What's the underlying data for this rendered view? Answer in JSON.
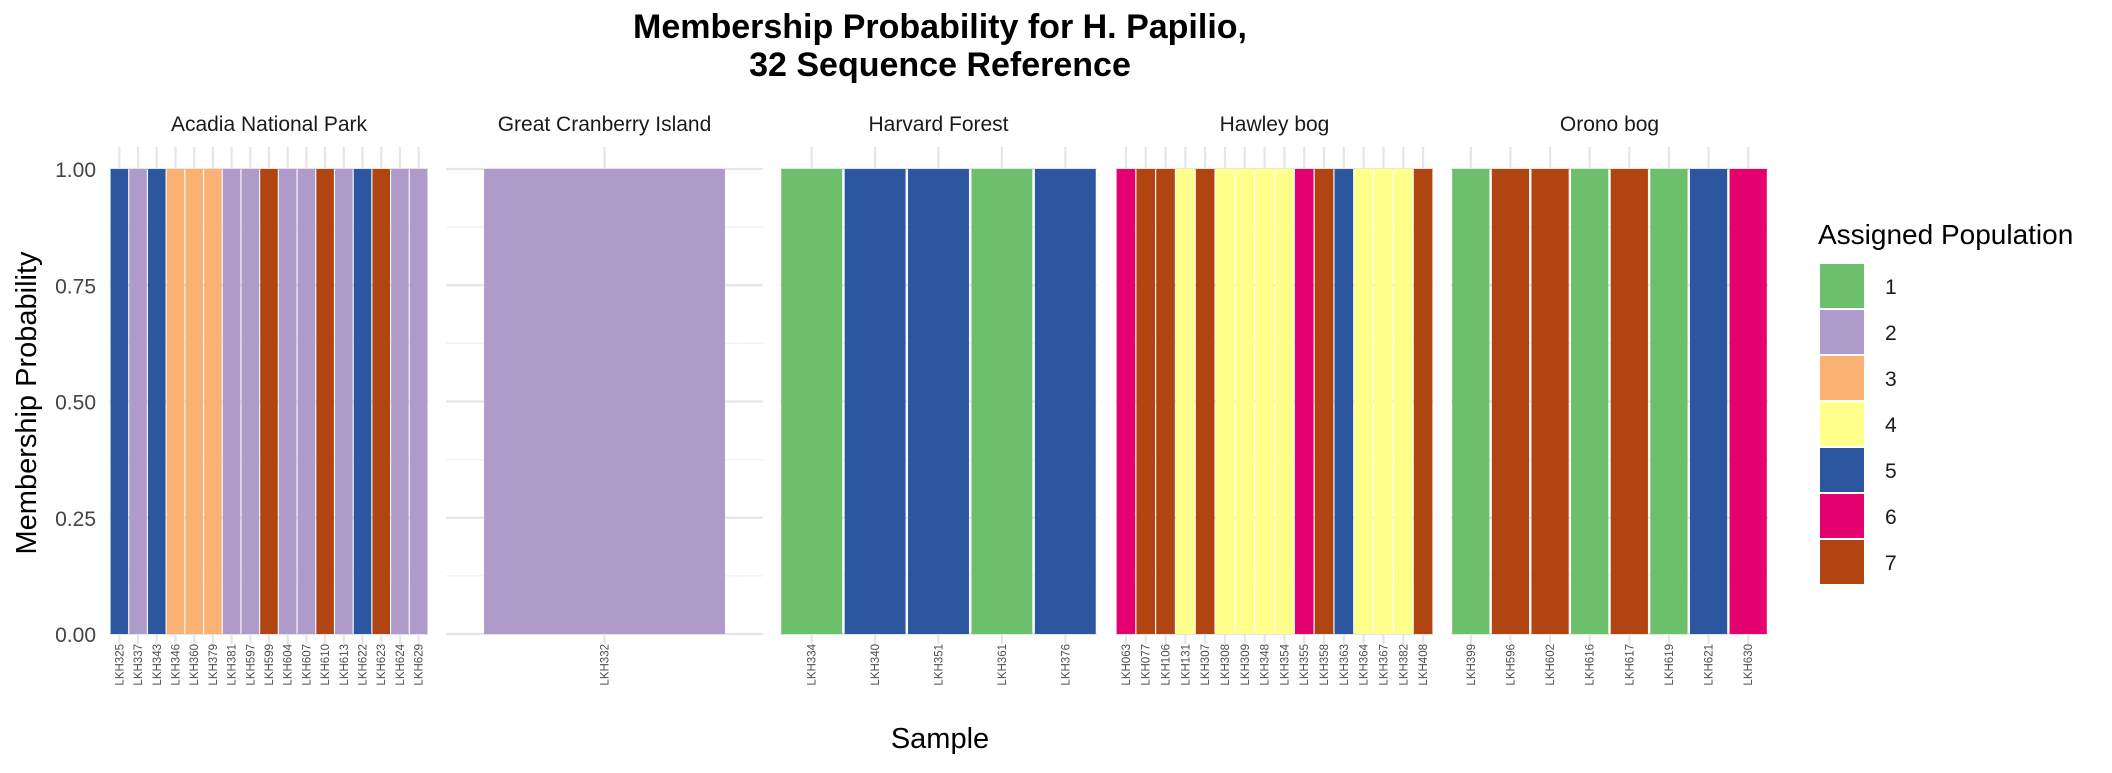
{
  "chart_data": {
    "type": "bar",
    "title_lines": [
      "Membership Probability for H. Papilio,",
      "32 Sequence Reference"
    ],
    "xlabel": "Sample",
    "ylabel": "Membership Probability",
    "ylim": [
      0,
      1
    ],
    "y_ticks": [
      "0.00",
      "0.25",
      "0.50",
      "0.75",
      "1.00"
    ],
    "y_tick_values": [
      0,
      0.25,
      0.5,
      0.75,
      1.0
    ],
    "grid": true,
    "stacked": true,
    "legend": {
      "title": "Assigned Population",
      "position": "right",
      "entries": [
        {
          "label": "1",
          "color": "#6DC06B"
        },
        {
          "label": "2",
          "color": "#AE9BCA"
        },
        {
          "label": "3",
          "color": "#FBB173"
        },
        {
          "label": "4",
          "color": "#FFFF8C"
        },
        {
          "label": "5",
          "color": "#2C56A0"
        },
        {
          "label": "6",
          "color": "#E5006F"
        },
        {
          "label": "7",
          "color": "#B14511"
        }
      ]
    },
    "facets": [
      {
        "name": "Acadia National Park",
        "samples": [
          {
            "id": "LKH325",
            "population": "5",
            "probability": 1.0
          },
          {
            "id": "LKH337",
            "population": "2",
            "probability": 1.0
          },
          {
            "id": "LKH343",
            "population": "5",
            "probability": 1.0
          },
          {
            "id": "LKH346",
            "population": "3",
            "probability": 1.0
          },
          {
            "id": "LKH360",
            "population": "3",
            "probability": 1.0
          },
          {
            "id": "LKH379",
            "population": "3",
            "probability": 1.0
          },
          {
            "id": "LKH381",
            "population": "2",
            "probability": 1.0
          },
          {
            "id": "LKH597",
            "population": "2",
            "probability": 1.0
          },
          {
            "id": "LKH599",
            "population": "7",
            "probability": 1.0
          },
          {
            "id": "LKH604",
            "population": "2",
            "probability": 1.0
          },
          {
            "id": "LKH607",
            "population": "2",
            "probability": 1.0
          },
          {
            "id": "LKH610",
            "population": "7",
            "probability": 1.0
          },
          {
            "id": "LKH613",
            "population": "2",
            "probability": 1.0
          },
          {
            "id": "LKH622",
            "population": "5",
            "probability": 1.0
          },
          {
            "id": "LKH623",
            "population": "7",
            "probability": 1.0
          },
          {
            "id": "LKH624",
            "population": "2",
            "probability": 1.0
          },
          {
            "id": "LKH629",
            "population": "2",
            "probability": 1.0
          }
        ]
      },
      {
        "name": "Great Cranberry Island",
        "samples": [
          {
            "id": "LKH332",
            "population": "2",
            "probability": 1.0
          }
        ]
      },
      {
        "name": "Harvard Forest",
        "samples": [
          {
            "id": "LKH334",
            "population": "1",
            "probability": 1.0
          },
          {
            "id": "LKH340",
            "population": "5",
            "probability": 1.0
          },
          {
            "id": "LKH351",
            "population": "5",
            "probability": 1.0
          },
          {
            "id": "LKH361",
            "population": "1",
            "probability": 1.0
          },
          {
            "id": "LKH376",
            "population": "5",
            "probability": 1.0
          }
        ]
      },
      {
        "name": "Hawley bog",
        "samples": [
          {
            "id": "LKH063",
            "population": "6",
            "probability": 1.0
          },
          {
            "id": "LKH077",
            "population": "7",
            "probability": 1.0
          },
          {
            "id": "LKH106",
            "population": "7",
            "probability": 1.0
          },
          {
            "id": "LKH131",
            "population": "4",
            "probability": 1.0
          },
          {
            "id": "LKH307",
            "population": "7",
            "probability": 1.0
          },
          {
            "id": "LKH308",
            "population": "4",
            "probability": 1.0
          },
          {
            "id": "LKH309",
            "population": "4",
            "probability": 1.0
          },
          {
            "id": "LKH348",
            "population": "4",
            "probability": 1.0
          },
          {
            "id": "LKH354",
            "population": "4",
            "probability": 1.0
          },
          {
            "id": "LKH355",
            "population": "6",
            "probability": 1.0
          },
          {
            "id": "LKH358",
            "population": "7",
            "probability": 1.0
          },
          {
            "id": "LKH363",
            "population": "5",
            "probability": 1.0
          },
          {
            "id": "LKH364",
            "population": "4",
            "probability": 1.0
          },
          {
            "id": "LKH367",
            "population": "4",
            "probability": 1.0
          },
          {
            "id": "LKH382",
            "population": "4",
            "probability": 1.0
          },
          {
            "id": "LKH408",
            "population": "7",
            "probability": 1.0
          }
        ]
      },
      {
        "name": "Orono bog",
        "samples": [
          {
            "id": "LKH399",
            "population": "1",
            "probability": 1.0
          },
          {
            "id": "LKH596",
            "population": "7",
            "probability": 1.0
          },
          {
            "id": "LKH602",
            "population": "7",
            "probability": 1.0
          },
          {
            "id": "LKH616",
            "population": "1",
            "probability": 1.0
          },
          {
            "id": "LKH617",
            "population": "7",
            "probability": 1.0
          },
          {
            "id": "LKH619",
            "population": "1",
            "probability": 1.0
          },
          {
            "id": "LKH621",
            "population": "5",
            "probability": 1.0
          },
          {
            "id": "LKH630",
            "population": "6",
            "probability": 1.0
          }
        ]
      }
    ]
  }
}
